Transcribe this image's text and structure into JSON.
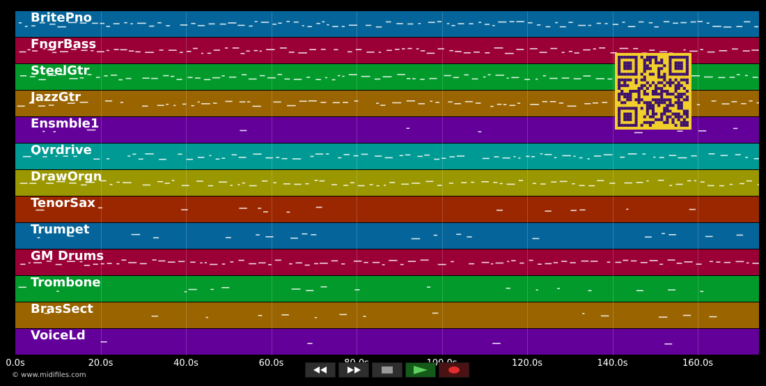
{
  "tracks": [
    {
      "name": "BritePno",
      "color": "#05659a"
    },
    {
      "name": "FngrBass",
      "color": "#9a0036"
    },
    {
      "name": "SteelGtr",
      "color": "#019a2b"
    },
    {
      "name": "JazzGtr",
      "color": "#9a6400"
    },
    {
      "name": "Ensmble1",
      "color": "#63009a"
    },
    {
      "name": "Ovrdrive",
      "color": "#009a94"
    },
    {
      "name": "DrawOrgn",
      "color": "#9a9700"
    },
    {
      "name": "TenorSax",
      "color": "#9a2700"
    },
    {
      "name": "Trumpet",
      "color": "#05659a"
    },
    {
      "name": "GM Drums",
      "color": "#9a0036"
    },
    {
      "name": "Trombone",
      "color": "#019a2b"
    },
    {
      "name": "BrasSect",
      "color": "#9a6400"
    },
    {
      "name": "VoiceLd",
      "color": "#63009a"
    }
  ],
  "timeline": {
    "ticks": [
      "0.0s",
      "20.0s",
      "40.0s",
      "60.0s",
      "80.0s",
      "100.0s",
      "120.0s",
      "140.0s",
      "160.0s"
    ],
    "duration_s": 175
  },
  "controls": [
    {
      "name": "rewind-button",
      "icon": "rewind-icon"
    },
    {
      "name": "fast-forward-button",
      "icon": "fast-forward-icon"
    },
    {
      "name": "stop-button",
      "icon": "stop-icon"
    },
    {
      "name": "play-button",
      "icon": "play-icon"
    },
    {
      "name": "record-button",
      "icon": "record-icon"
    }
  ],
  "credit": "© www.midifiles.com",
  "qr_color": "#f2d02c"
}
